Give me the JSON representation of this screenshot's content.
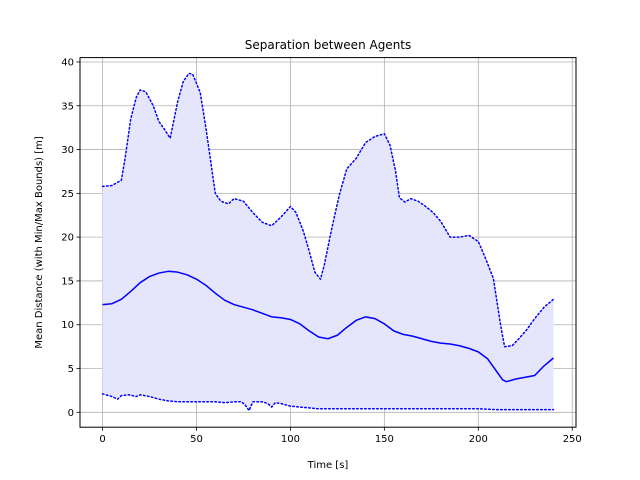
{
  "chart_data": {
    "type": "line",
    "title": "Separation between Agents",
    "xlabel": "Time [s]",
    "ylabel": "Mean Distance (with Min/Max Bounds) [m]",
    "xlim": [
      -12,
      252
    ],
    "ylim": [
      -1.7,
      40.5
    ],
    "xticks": [
      0,
      50,
      100,
      150,
      200,
      250
    ],
    "yticks": [
      0,
      5,
      10,
      15,
      20,
      25,
      30,
      35,
      40
    ],
    "grid": true,
    "colors": {
      "line": "#0000ff",
      "fill": "#e5e5fc",
      "grid": "#b0b0b0"
    },
    "series": [
      {
        "role": "mean",
        "style": "solid",
        "x": [
          0,
          5,
          10,
          15,
          20,
          25,
          30,
          35,
          40,
          45,
          50,
          55,
          60,
          65,
          70,
          75,
          80,
          85,
          90,
          95,
          100,
          105,
          110,
          115,
          120,
          125,
          130,
          135,
          140,
          145,
          150,
          155,
          160,
          165,
          170,
          175,
          180,
          185,
          190,
          195,
          200,
          205,
          210,
          213,
          215,
          220,
          225,
          230,
          235,
          240
        ],
        "y": [
          12.3,
          12.4,
          12.9,
          13.8,
          14.8,
          15.5,
          15.9,
          16.1,
          16.0,
          15.7,
          15.2,
          14.5,
          13.6,
          12.8,
          12.3,
          12.0,
          11.7,
          11.3,
          10.9,
          10.8,
          10.6,
          10.1,
          9.3,
          8.6,
          8.4,
          8.8,
          9.7,
          10.5,
          10.9,
          10.7,
          10.1,
          9.3,
          8.9,
          8.7,
          8.4,
          8.1,
          7.9,
          7.8,
          7.6,
          7.3,
          6.9,
          6.1,
          4.6,
          3.7,
          3.5,
          3.8,
          4.0,
          4.2,
          5.3,
          6.2
        ]
      },
      {
        "role": "max",
        "style": "dotted",
        "x": [
          0,
          5,
          10,
          12,
          15,
          18,
          20,
          23,
          27,
          30,
          33,
          36,
          40,
          43,
          46,
          48,
          52,
          55,
          58,
          60,
          63,
          67,
          70,
          75,
          80,
          85,
          90,
          95,
          100,
          103,
          107,
          110,
          113,
          116,
          118,
          122,
          126,
          130,
          135,
          140,
          145,
          150,
          153,
          156,
          158,
          161,
          164,
          168,
          172,
          176,
          180,
          185,
          190,
          195,
          200,
          204,
          208,
          212,
          214,
          218,
          222,
          226,
          230,
          235,
          240
        ],
        "y": [
          25.8,
          25.9,
          26.5,
          29.0,
          33.5,
          36.0,
          36.8,
          36.6,
          35.0,
          33.2,
          32.3,
          31.3,
          35.5,
          37.8,
          38.7,
          38.6,
          36.5,
          32.5,
          28.0,
          25.0,
          24.1,
          23.8,
          24.4,
          24.1,
          22.8,
          21.7,
          21.3,
          22.3,
          23.5,
          22.8,
          20.6,
          18.4,
          16.0,
          15.2,
          16.8,
          21.0,
          24.8,
          27.8,
          29.0,
          30.8,
          31.5,
          31.8,
          30.5,
          27.5,
          24.5,
          24.0,
          24.4,
          24.1,
          23.5,
          22.8,
          21.8,
          20.0,
          20.0,
          20.2,
          19.5,
          17.5,
          15.3,
          9.8,
          7.5,
          7.6,
          8.5,
          9.5,
          10.7,
          12.0,
          12.9
        ]
      },
      {
        "role": "min",
        "style": "dotted",
        "x": [
          0,
          5,
          8,
          10,
          14,
          18,
          20,
          25,
          30,
          35,
          40,
          50,
          60,
          65,
          70,
          74,
          76,
          78,
          80,
          85,
          88,
          90,
          92,
          95,
          100,
          105,
          110,
          115,
          150,
          200,
          210,
          220,
          230,
          240
        ],
        "y": [
          2.1,
          1.8,
          1.5,
          1.9,
          2.0,
          1.8,
          2.0,
          1.8,
          1.5,
          1.3,
          1.2,
          1.2,
          1.2,
          1.1,
          1.2,
          1.2,
          0.8,
          0.2,
          1.2,
          1.2,
          1.0,
          0.6,
          1.1,
          1.0,
          0.7,
          0.6,
          0.5,
          0.4,
          0.4,
          0.4,
          0.3,
          0.3,
          0.3,
          0.3
        ]
      }
    ]
  }
}
